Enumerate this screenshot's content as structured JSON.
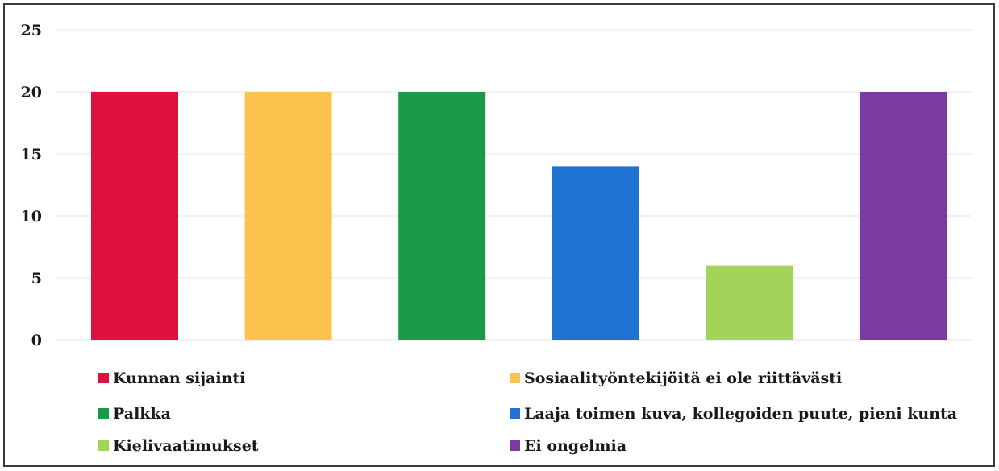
{
  "chart_data": {
    "type": "bar",
    "categories": [
      "Kunnan sijainti",
      "Sosiaalityöntekijöitä ei ole riittävästi",
      "Palkka",
      "Laaja toimen kuva, kollegoiden puute, pieni kunta",
      "Kielivaatimukset",
      "Ei ongelmia"
    ],
    "values": [
      20,
      20,
      20,
      14,
      6,
      20
    ],
    "colors": [
      "#e0103c",
      "#fcc24e",
      "#1a9a46",
      "#1f72d2",
      "#a2d45a",
      "#7b3aa0"
    ],
    "ylim": [
      0,
      25
    ],
    "yticks": [
      "0",
      "5",
      "10",
      "15",
      "20",
      "25"
    ],
    "title": "",
    "xlabel": "",
    "ylabel": "",
    "grid": true,
    "legend_position": "bottom"
  }
}
